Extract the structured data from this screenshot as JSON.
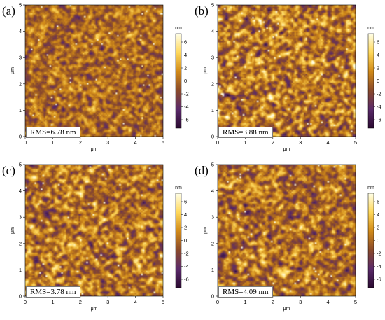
{
  "panels": [
    {
      "letter": "(a)",
      "rms": "RMS=6.78 nm"
    },
    {
      "letter": "(b)",
      "rms": "RMS=3.88 nm"
    },
    {
      "letter": "(c)",
      "rms": "RMS=3.78 nm"
    },
    {
      "letter": "(d)",
      "rms": "RMS=4.09 nm"
    }
  ],
  "axes": {
    "x_label": "μm",
    "y_label": "μm",
    "x_ticks": [
      "0",
      "1",
      "2",
      "3",
      "4",
      "5"
    ],
    "y_ticks": [
      "0",
      "1",
      "2",
      "3",
      "4",
      "5"
    ]
  },
  "colorbar": {
    "unit": "nm",
    "ticks": [
      "6",
      "4",
      "2",
      "0",
      "-2",
      "-4",
      "-6"
    ],
    "colormap": [
      "#ffffe8",
      "#ffd85a",
      "#d18a18",
      "#8a4a2a",
      "#5a2a6a",
      "#2a0a30"
    ]
  }
}
